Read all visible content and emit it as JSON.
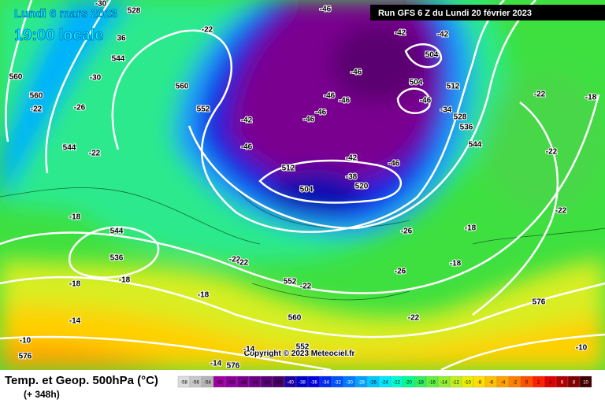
{
  "header": {
    "date": "Lundi 6 mars 2023",
    "time": "19:00 locale",
    "run": "Run GFS 6 Z du Lundi 20 février 2023"
  },
  "footer": {
    "title": "Temp. et Geop. 500hPa (°C)",
    "hour": "(+ 348h)",
    "copyright": "Copyright © 2023 Meteociel.fr"
  },
  "legend": {
    "items": [
      {
        "value": -58,
        "color": "#dcdcdc"
      },
      {
        "value": -56,
        "color": "#c8c8c8"
      },
      {
        "value": -54,
        "color": "#b4b4b4"
      },
      {
        "value": -52,
        "color": "#a000a0"
      },
      {
        "value": -50,
        "color": "#9000a0"
      },
      {
        "value": -48,
        "color": "#800090"
      },
      {
        "value": -46,
        "color": "#700088"
      },
      {
        "value": -44,
        "color": "#5a0078"
      },
      {
        "value": -42,
        "color": "#48006a"
      },
      {
        "value": -40,
        "color": "#2000a0"
      },
      {
        "value": -38,
        "color": "#0000c8"
      },
      {
        "value": -36,
        "color": "#0000e0"
      },
      {
        "value": -34,
        "color": "#0028f0"
      },
      {
        "value": -32,
        "color": "#0050ff"
      },
      {
        "value": -30,
        "color": "#0078ff"
      },
      {
        "value": -28,
        "color": "#00a0ff"
      },
      {
        "value": -26,
        "color": "#00c8ff"
      },
      {
        "value": -24,
        "color": "#00e8ff"
      },
      {
        "value": -22,
        "color": "#00ffd0"
      },
      {
        "value": -20,
        "color": "#00ff90"
      },
      {
        "value": -18,
        "color": "#30f060"
      },
      {
        "value": -16,
        "color": "#60f040"
      },
      {
        "value": -14,
        "color": "#90f030"
      },
      {
        "value": -12,
        "color": "#c0f020"
      },
      {
        "value": -10,
        "color": "#e8f000"
      },
      {
        "value": -8,
        "color": "#ffe000"
      },
      {
        "value": -6,
        "color": "#ffc000"
      },
      {
        "value": -4,
        "color": "#ffa000"
      },
      {
        "value": -2,
        "color": "#ff8000"
      },
      {
        "value": 0,
        "color": "#ff5000"
      },
      {
        "value": 2,
        "color": "#ff2000"
      },
      {
        "value": 4,
        "color": "#e00000"
      },
      {
        "value": 6,
        "color": "#b00000"
      },
      {
        "value": 8,
        "color": "#800000"
      },
      {
        "value": 10,
        "color": "#400000"
      }
    ]
  },
  "map": {
    "labels": [
      "-46",
      "-42",
      "-42",
      "504",
      "-46",
      "504",
      "-46",
      "512",
      "-46",
      "-46",
      "-46",
      "-46",
      "-42",
      "-46",
      "-42",
      "-46",
      "512",
      "-38",
      "504",
      "520",
      "-26",
      "-18",
      "-22",
      "-22",
      "544",
      "536",
      "528",
      "-34",
      "-22",
      "-18",
      "-30",
      "528",
      "-22",
      "544",
      "-30",
      "36",
      "560",
      "560",
      "-22",
      "-26",
      "560",
      "552",
      "544",
      "-22",
      "-18",
      "544",
      "536",
      "-18",
      "-18",
      "-22",
      "-22",
      "552",
      "-22",
      "-18",
      "-26",
      "-18",
      "576",
      "-22",
      "-10",
      "576",
      "-14",
      "560",
      "-10",
      "-14",
      "576",
      "-14",
      "552"
    ]
  }
}
